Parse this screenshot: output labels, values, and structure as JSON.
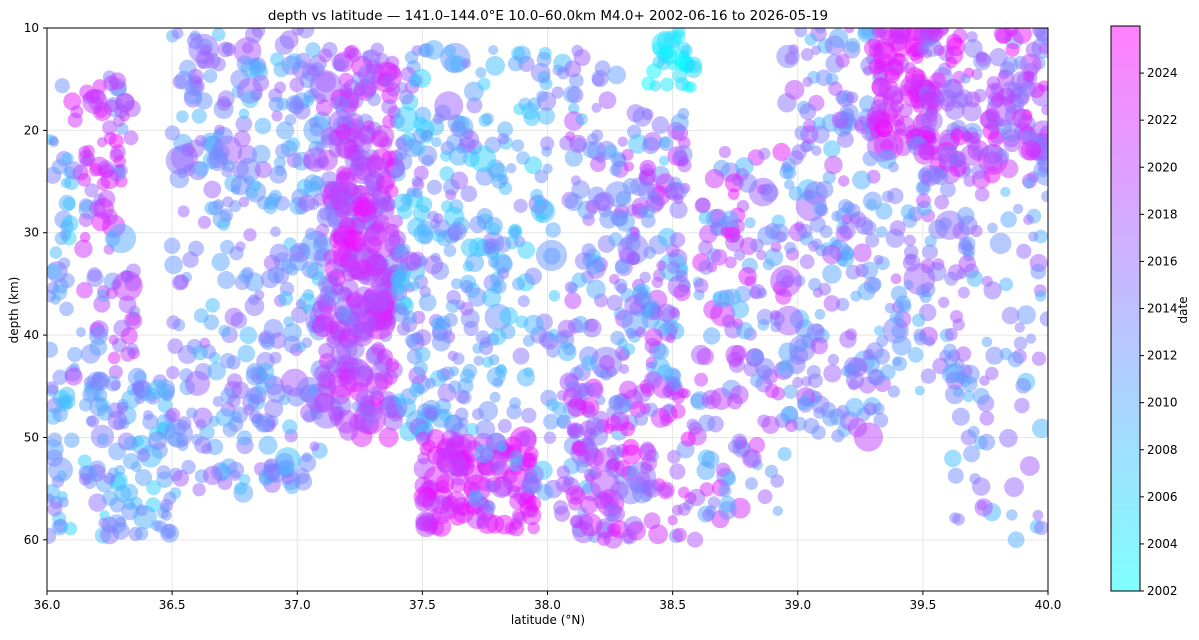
{
  "chart_data": {
    "type": "scatter",
    "title": "depth vs latitude — 141.0–144.0°E  10.0–60.0km  M4.0+  2002-06-16 to 2026-05-19",
    "xlabel": "latitude (°N)",
    "ylabel": "depth (km)",
    "xlim": [
      36.0,
      40.0
    ],
    "ylim": [
      65,
      10
    ],
    "y_inverted": true,
    "x_ticks": [
      "36.0",
      "36.5",
      "37.0",
      "37.5",
      "38.0",
      "38.5",
      "39.0",
      "39.5",
      "40.0"
    ],
    "y_ticks": [
      "10",
      "20",
      "30",
      "40",
      "50",
      "60"
    ],
    "grid": true,
    "colorbar": {
      "label": "date",
      "colormap": "cool",
      "color_low": "#00ffff",
      "color_high": "#ff00ff",
      "opacity": 0.5,
      "range": [
        2002,
        2026
      ],
      "ticks": [
        "2002",
        "2004",
        "2006",
        "2008",
        "2010",
        "2012",
        "2014",
        "2016",
        "2018",
        "2020",
        "2022",
        "2024"
      ]
    },
    "marker_size_encodes": "magnitude",
    "clusters": [
      {
        "lat_range": [
          36.0,
          36.1
        ],
        "depth_range": [
          15,
          60
        ],
        "year_range": [
          2006,
          2016
        ],
        "count": 60,
        "size": [
          5,
          9
        ]
      },
      {
        "lat_range": [
          36.1,
          36.35
        ],
        "depth_range": [
          14,
          45
        ],
        "year_range": [
          2010,
          2024
        ],
        "count": 80,
        "size": [
          5,
          10
        ]
      },
      {
        "lat_range": [
          36.15,
          36.3
        ],
        "depth_range": [
          15,
          30
        ],
        "year_range": [
          2018,
          2025
        ],
        "count": 25,
        "size": [
          6,
          10
        ]
      },
      {
        "lat_range": [
          36.15,
          36.5
        ],
        "depth_range": [
          44,
          60
        ],
        "year_range": [
          2006,
          2016
        ],
        "count": 110,
        "size": [
          5,
          10
        ]
      },
      {
        "lat_range": [
          36.5,
          36.85
        ],
        "depth_range": [
          10,
          56
        ],
        "year_range": [
          2008,
          2018
        ],
        "count": 200,
        "size": [
          5,
          10
        ]
      },
      {
        "lat_range": [
          36.85,
          37.1
        ],
        "depth_range": [
          10,
          55
        ],
        "year_range": [
          2008,
          2018
        ],
        "count": 170,
        "size": [
          5,
          10
        ]
      },
      {
        "lat_range": [
          37.1,
          37.4
        ],
        "depth_range": [
          12,
          50
        ],
        "year_range": [
          2013,
          2024
        ],
        "count": 280,
        "size": [
          6,
          11
        ]
      },
      {
        "lat_range": [
          37.15,
          37.35
        ],
        "depth_range": [
          20,
          40
        ],
        "year_range": [
          2018,
          2025
        ],
        "count": 60,
        "size": [
          7,
          12
        ]
      },
      {
        "lat_range": [
          37.4,
          37.7
        ],
        "depth_range": [
          12,
          50
        ],
        "year_range": [
          2006,
          2018
        ],
        "count": 190,
        "size": [
          5,
          10
        ]
      },
      {
        "lat_range": [
          37.5,
          37.95
        ],
        "depth_range": [
          50,
          59
        ],
        "year_range": [
          2019,
          2025
        ],
        "count": 130,
        "size": [
          6,
          11
        ]
      },
      {
        "lat_range": [
          37.7,
          38.05
        ],
        "depth_range": [
          12,
          57
        ],
        "year_range": [
          2006,
          2016
        ],
        "count": 150,
        "size": [
          5,
          10
        ]
      },
      {
        "lat_range": [
          38.05,
          38.3
        ],
        "depth_range": [
          12,
          60
        ],
        "year_range": [
          2008,
          2020
        ],
        "count": 140,
        "size": [
          5,
          10
        ]
      },
      {
        "lat_range": [
          38.1,
          38.6
        ],
        "depth_range": [
          45,
          60
        ],
        "year_range": [
          2012,
          2025
        ],
        "count": 120,
        "size": [
          5,
          10
        ]
      },
      {
        "lat_range": [
          38.3,
          38.55
        ],
        "depth_range": [
          18,
          45
        ],
        "year_range": [
          2008,
          2022
        ],
        "count": 130,
        "size": [
          5,
          10
        ]
      },
      {
        "lat_range": [
          38.4,
          38.6
        ],
        "depth_range": [
          10,
          16
        ],
        "year_range": [
          2002,
          2007
        ],
        "count": 30,
        "size": [
          5,
          9
        ]
      },
      {
        "lat_range": [
          38.6,
          38.95
        ],
        "depth_range": [
          22,
          58
        ],
        "year_range": [
          2008,
          2024
        ],
        "count": 150,
        "size": [
          5,
          10
        ]
      },
      {
        "lat_range": [
          38.95,
          39.35
        ],
        "depth_range": [
          10,
          50
        ],
        "year_range": [
          2008,
          2020
        ],
        "count": 220,
        "size": [
          5,
          10
        ]
      },
      {
        "lat_range": [
          39.3,
          39.55
        ],
        "depth_range": [
          10,
          22
        ],
        "year_range": [
          2020,
          2025
        ],
        "count": 90,
        "size": [
          6,
          11
        ]
      },
      {
        "lat_range": [
          39.35,
          39.7
        ],
        "depth_range": [
          20,
          46
        ],
        "year_range": [
          2008,
          2020
        ],
        "count": 90,
        "size": [
          5,
          10
        ]
      },
      {
        "lat_range": [
          39.5,
          40.0
        ],
        "depth_range": [
          10,
          25
        ],
        "year_range": [
          2012,
          2025
        ],
        "count": 170,
        "size": [
          5,
          11
        ]
      },
      {
        "lat_range": [
          39.6,
          40.0
        ],
        "depth_range": [
          25,
          60
        ],
        "year_range": [
          2008,
          2018
        ],
        "count": 80,
        "size": [
          5,
          10
        ]
      }
    ]
  }
}
